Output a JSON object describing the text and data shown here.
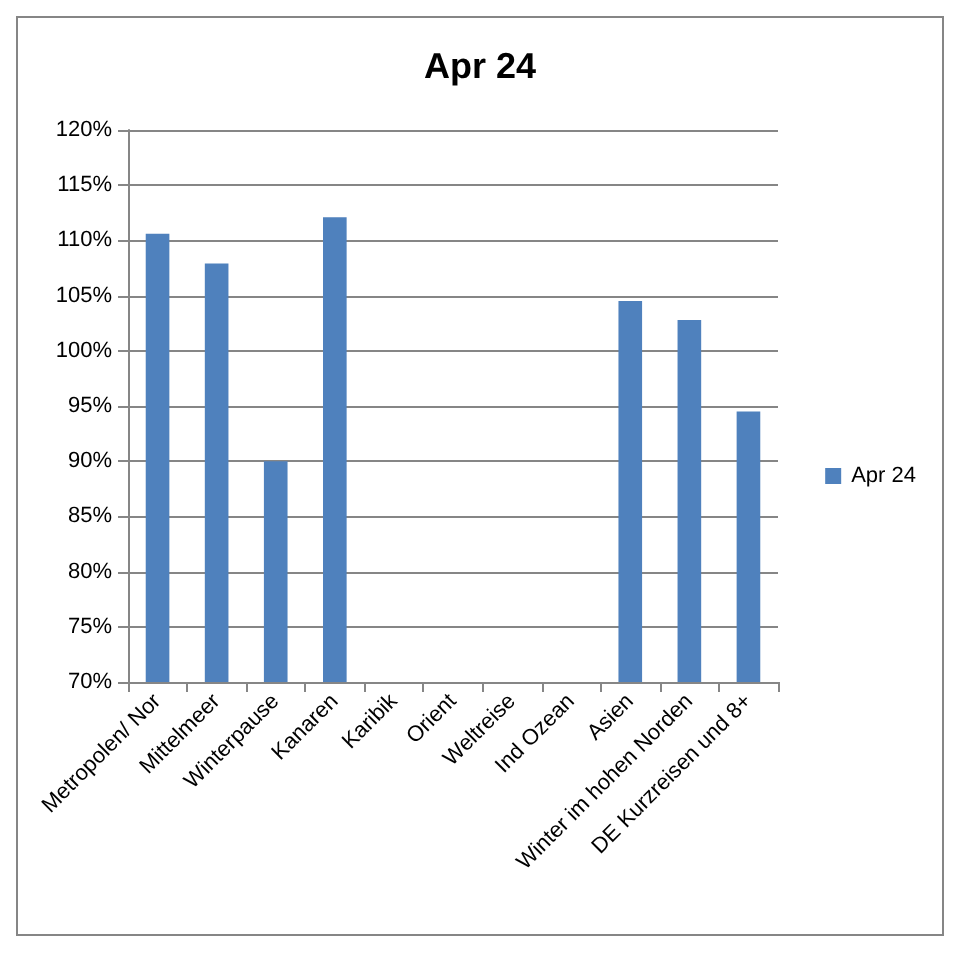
{
  "chart_data": {
    "type": "bar",
    "title": "Apr 24",
    "categories": [
      "Metropolen/ Nor",
      "Mittelmeer",
      "Winterpause",
      "Kanaren",
      "Karibik",
      "Orient",
      "Weltreise",
      "Ind Ozean",
      "Asien",
      "Winter im hohen Norden",
      "DE Kurzreisen und 8+"
    ],
    "series": [
      {
        "name": "Apr 24",
        "color": "#4f81bd",
        "values": [
          110.6,
          107.9,
          90.0,
          112.1,
          null,
          null,
          null,
          null,
          104.5,
          102.8,
          94.5
        ]
      }
    ],
    "ylim": [
      70,
      120
    ],
    "yticks": [
      {
        "value": 70,
        "label": "70%"
      },
      {
        "value": 75,
        "label": "75%"
      },
      {
        "value": 80,
        "label": "80%"
      },
      {
        "value": 85,
        "label": "85%"
      },
      {
        "value": 90,
        "label": "90%"
      },
      {
        "value": 95,
        "label": "95%"
      },
      {
        "value": 100,
        "label": "100%"
      },
      {
        "value": 105,
        "label": "105%"
      },
      {
        "value": 110,
        "label": "110%"
      },
      {
        "value": 115,
        "label": "115%"
      },
      {
        "value": 120,
        "label": "120%"
      }
    ],
    "grid": "y",
    "legend": "right"
  }
}
